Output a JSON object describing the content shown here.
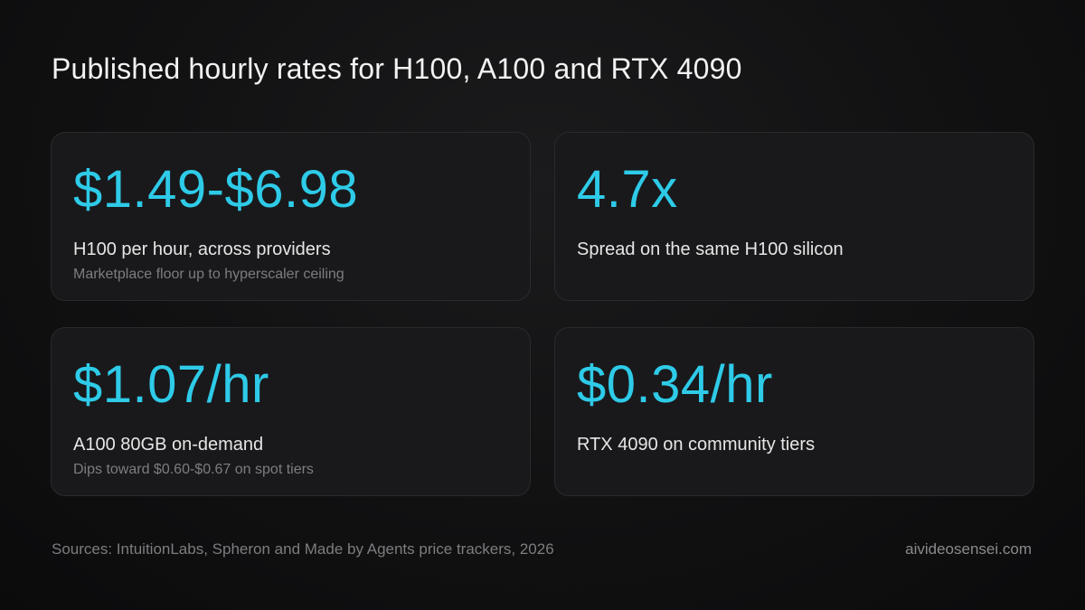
{
  "title": "Published hourly rates for H100, A100 and RTX 4090",
  "accent_color": "#2ecbe8",
  "cards": [
    {
      "stat": "$1.49-$6.98",
      "label": "H100 per hour, across providers",
      "sub": "Marketplace floor up to hyperscaler ceiling"
    },
    {
      "stat": "4.7x",
      "label": "Spread on the same H100 silicon",
      "sub": ""
    },
    {
      "stat": "$1.07/hr",
      "label": "A100 80GB on-demand",
      "sub": "Dips toward $0.60-$0.67 on spot tiers"
    },
    {
      "stat": "$0.34/hr",
      "label": "RTX 4090 on community tiers",
      "sub": ""
    }
  ],
  "footer": {
    "sources": "Sources: IntuitionLabs, Spheron and Made by Agents price trackers, 2026",
    "site": "aivideosensei.com"
  }
}
